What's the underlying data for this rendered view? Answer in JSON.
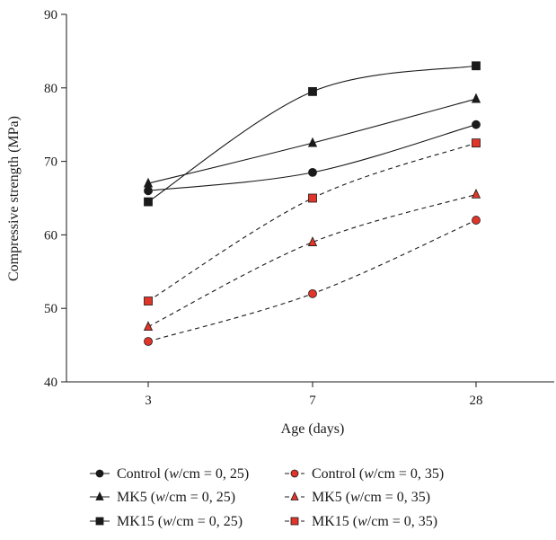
{
  "chart_data": {
    "type": "line",
    "title": "",
    "xlabel": "Age (days)",
    "ylabel": "Compressive strength (MPa)",
    "categories": [
      "3",
      "7",
      "28"
    ],
    "ylim": [
      40,
      90
    ],
    "yticks": [
      "40",
      "50",
      "60",
      "70",
      "80",
      "90"
    ],
    "grid": false,
    "legend_position": "bottom",
    "series": [
      {
        "name": "Control (w/cm = 0, 25)",
        "name_parts": [
          "Control (",
          "w",
          "/cm = 0, 25)"
        ],
        "values": [
          66,
          68.5,
          75
        ],
        "marker": "circle",
        "line": "solid",
        "color": "#1a1a1a"
      },
      {
        "name": "MK5 (w/cm = 0, 25)",
        "name_parts": [
          "MK5 (",
          "w",
          "/cm = 0, 25)"
        ],
        "values": [
          67,
          72.5,
          78.5
        ],
        "marker": "triangle",
        "line": "solid",
        "color": "#1a1a1a"
      },
      {
        "name": "MK15 (w/cm = 0, 25)",
        "name_parts": [
          "MK15 (",
          "w",
          "/cm = 0, 25)"
        ],
        "values": [
          64.5,
          79.5,
          83
        ],
        "marker": "square",
        "line": "solid",
        "color": "#1a1a1a"
      },
      {
        "name": "Control (w/cm = 0, 35)",
        "name_parts": [
          "Control (",
          "w",
          "/cm = 0, 35)"
        ],
        "values": [
          45.5,
          52,
          62
        ],
        "marker": "circle",
        "line": "dashed",
        "color": "#e2352a"
      },
      {
        "name": "MK5 (w/cm = 0, 35)",
        "name_parts": [
          "MK5 (",
          "w",
          "/cm = 0, 35)"
        ],
        "values": [
          47.5,
          59,
          65.5
        ],
        "marker": "triangle",
        "line": "dashed",
        "color": "#e2352a"
      },
      {
        "name": "MK15 (w/cm = 0, 35)",
        "name_parts": [
          "MK15 (",
          "w",
          "/cm = 0, 35)"
        ],
        "values": [
          51,
          65,
          72.5
        ],
        "marker": "square",
        "line": "dashed",
        "color": "#e2352a"
      }
    ]
  }
}
